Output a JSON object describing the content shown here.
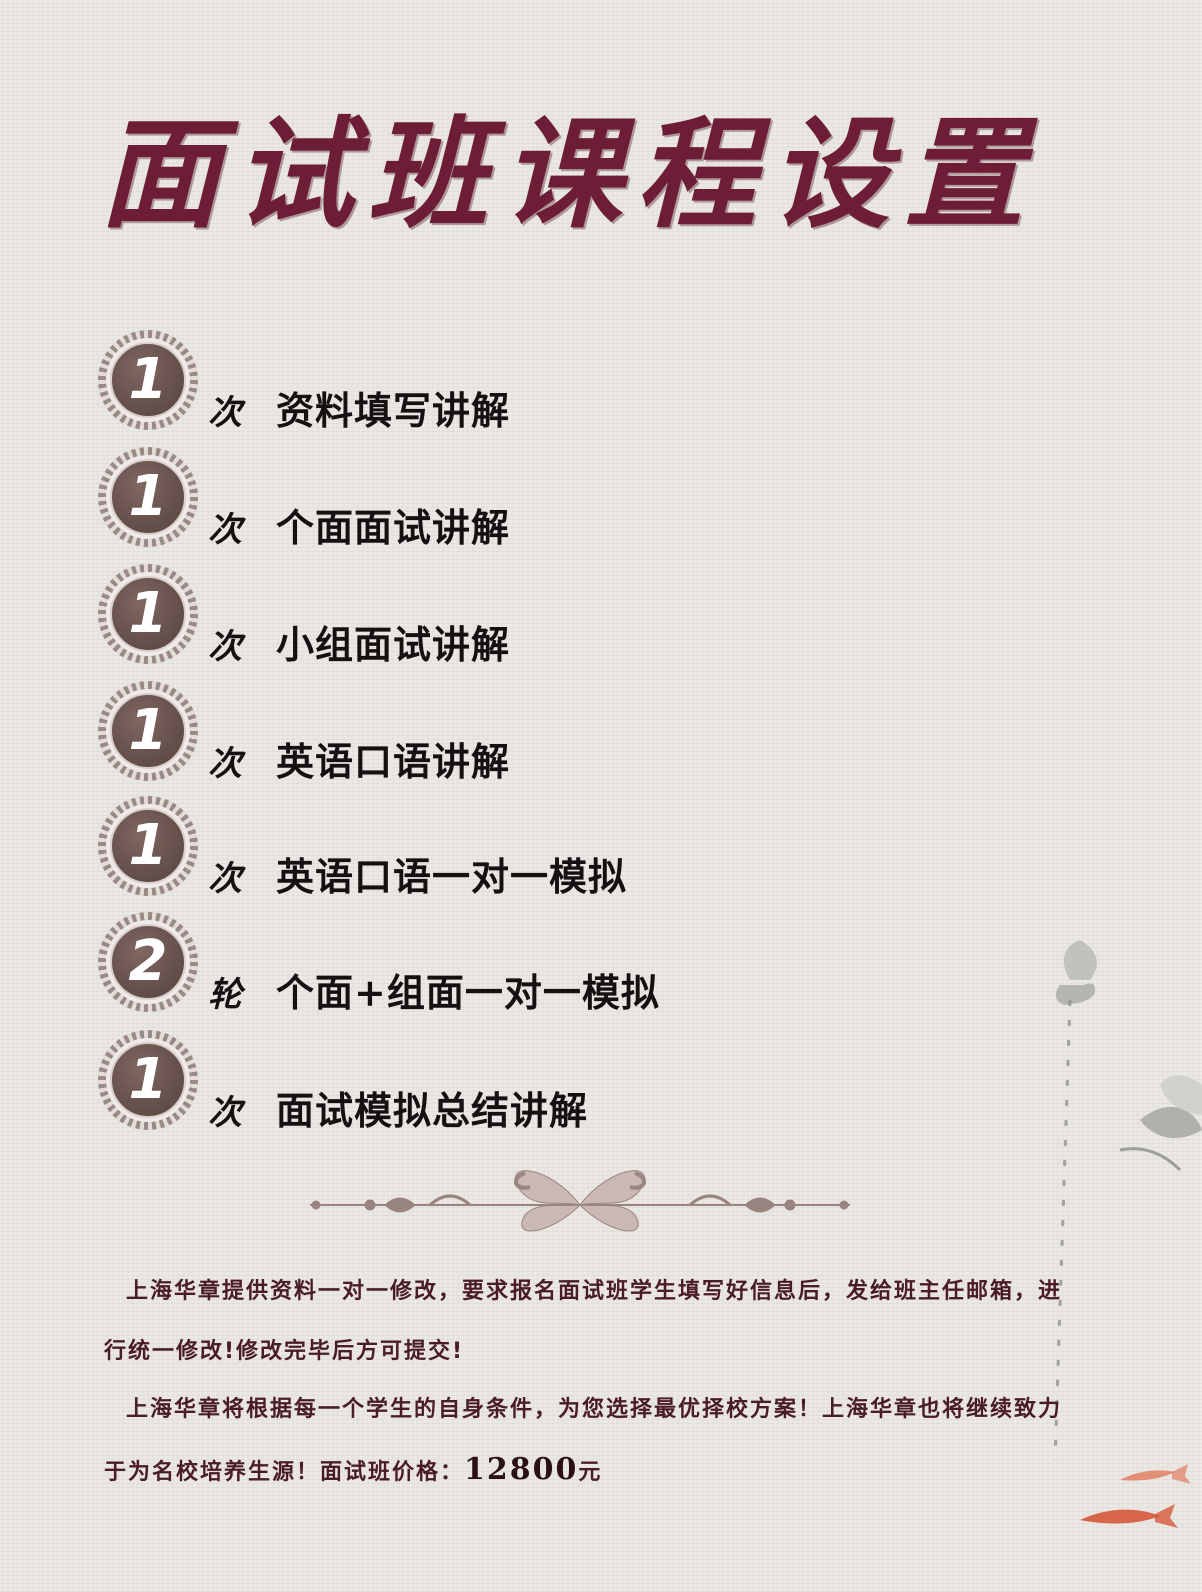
{
  "title": "面试班课程设置",
  "courses": [
    {
      "count": "1",
      "unit": "次",
      "label": "资料填写讲解"
    },
    {
      "count": "1",
      "unit": "次",
      "label": "个面面试讲解"
    },
    {
      "count": "1",
      "unit": "次",
      "label": "小组面试讲解"
    },
    {
      "count": "1",
      "unit": "次",
      "label": "英语口语讲解"
    },
    {
      "count": "1",
      "unit": "次",
      "label": "英语口语一对一模拟"
    },
    {
      "count": "2",
      "unit": "轮",
      "label": "个面+组面一对一模拟"
    },
    {
      "count": "1",
      "unit": "次",
      "label": "面试模拟总结讲解"
    }
  ],
  "notes": {
    "paragraph1": "上海华章提供资料一对一修改，要求报名面试班学生填写好信息后，发给班主任邮箱，进行统一修改!修改完毕后方可提交!",
    "paragraph2_text": "上海华章将根据每一个学生的自身条件，为您选择最优择校方案！上海华章也将继续致力于为名校培养生源！面试班价格：",
    "price_value": "12800",
    "price_unit": "元"
  },
  "colors": {
    "title": "#6e1d36",
    "badge": "#66504b",
    "text": "#151112",
    "note": "#4a1c26",
    "background": "#e9e5e0"
  },
  "decorations": [
    "ornamental-divider",
    "lotus-ink-painting",
    "koi-fish"
  ]
}
